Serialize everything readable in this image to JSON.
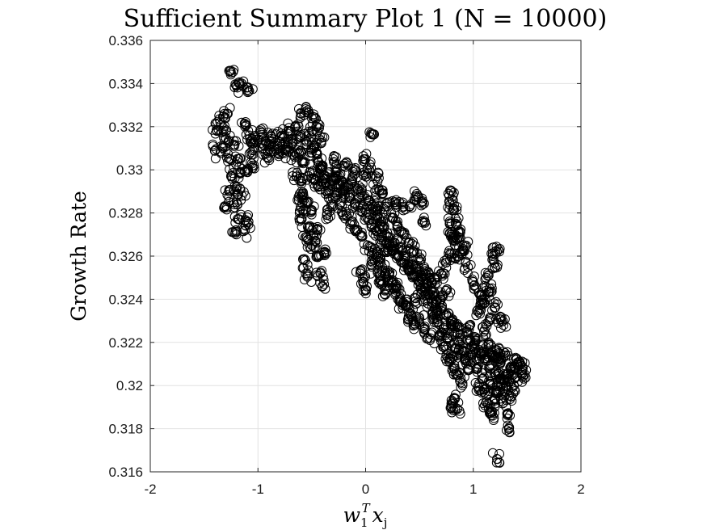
{
  "chart_data": {
    "type": "scatter",
    "title": "Sufficient Summary Plot 1 (N = 10000)",
    "xlabel": "w_1^T x_j",
    "ylabel": "Growth Rate",
    "xlim": [
      -2,
      2
    ],
    "ylim": [
      0.316,
      0.336
    ],
    "x_ticks": [
      "-2",
      "-1",
      "0",
      "1",
      "2"
    ],
    "y_ticks": [
      "0.316",
      "0.318",
      "0.32",
      "0.322",
      "0.324",
      "0.326",
      "0.328",
      "0.33",
      "0.332",
      "0.334",
      "0.336"
    ],
    "grid": true,
    "marker": "open-circle",
    "marker_color": "#000000",
    "n_points": 10000,
    "series": [
      {
        "points": [
          [
            -1.25,
            0.3345
          ],
          [
            -1.2,
            0.3339
          ],
          [
            -1.15,
            0.334
          ],
          [
            -1.1,
            0.3337
          ],
          [
            -1.3,
            0.3315
          ],
          [
            -1.35,
            0.3322
          ],
          [
            -1.4,
            0.3309
          ],
          [
            -1.32,
            0.3318
          ],
          [
            -1.28,
            0.3326
          ],
          [
            -1.22,
            0.3311
          ],
          [
            -1.18,
            0.3305
          ],
          [
            -1.12,
            0.332
          ],
          [
            -1.08,
            0.3316
          ],
          [
            -1.05,
            0.3312
          ],
          [
            -1.0,
            0.3314
          ],
          [
            -0.95,
            0.331
          ],
          [
            -0.9,
            0.3312
          ],
          [
            -0.85,
            0.3311
          ],
          [
            -0.8,
            0.3313
          ],
          [
            -0.75,
            0.3309
          ],
          [
            -1.25,
            0.3297
          ],
          [
            -1.2,
            0.3291
          ],
          [
            -1.15,
            0.3288
          ],
          [
            -1.1,
            0.3299
          ],
          [
            -1.05,
            0.3302
          ],
          [
            -1.22,
            0.3284
          ],
          [
            -1.18,
            0.3277
          ],
          [
            -1.2,
            0.327
          ],
          [
            -1.12,
            0.3272
          ],
          [
            -1.1,
            0.3278
          ],
          [
            -1.3,
            0.3283
          ],
          [
            -1.27,
            0.329
          ],
          [
            -0.6,
            0.3326
          ],
          [
            -0.55,
            0.3327
          ],
          [
            -0.5,
            0.3324
          ],
          [
            -0.45,
            0.332
          ],
          [
            -0.65,
            0.332
          ],
          [
            -0.6,
            0.3315
          ],
          [
            -0.55,
            0.3312
          ],
          [
            -0.5,
            0.3308
          ],
          [
            -0.45,
            0.3305
          ],
          [
            -0.4,
            0.3302
          ],
          [
            -0.35,
            0.3298
          ],
          [
            -0.3,
            0.3296
          ],
          [
            -0.25,
            0.3293
          ],
          [
            -0.2,
            0.329
          ],
          [
            -0.15,
            0.3287
          ],
          [
            -0.1,
            0.3284
          ],
          [
            -0.05,
            0.3281
          ],
          [
            0.0,
            0.3278
          ],
          [
            0.05,
            0.3275
          ],
          [
            0.1,
            0.3272
          ],
          [
            0.15,
            0.3269
          ],
          [
            0.2,
            0.3266
          ],
          [
            0.25,
            0.3263
          ],
          [
            0.3,
            0.326
          ],
          [
            0.35,
            0.3257
          ],
          [
            0.4,
            0.3254
          ],
          [
            0.45,
            0.3251
          ],
          [
            0.5,
            0.3248
          ],
          [
            0.55,
            0.3245
          ],
          [
            0.6,
            0.3242
          ],
          [
            0.65,
            0.3239
          ],
          [
            0.7,
            0.3236
          ],
          [
            0.75,
            0.3233
          ],
          [
            0.8,
            0.323
          ],
          [
            0.85,
            0.3227
          ],
          [
            0.9,
            0.3224
          ],
          [
            0.95,
            0.3221
          ],
          [
            1.0,
            0.3218
          ],
          [
            1.05,
            0.3215
          ],
          [
            1.1,
            0.3212
          ],
          [
            1.15,
            0.3209
          ],
          [
            1.2,
            0.3206
          ],
          [
            1.25,
            0.3203
          ],
          [
            1.3,
            0.32
          ],
          [
            1.35,
            0.3208
          ],
          [
            1.4,
            0.3212
          ],
          [
            1.45,
            0.3205
          ],
          [
            1.42,
            0.3211
          ],
          [
            -0.4,
            0.3315
          ],
          [
            -0.3,
            0.3305
          ],
          [
            -0.2,
            0.3302
          ],
          [
            -0.1,
            0.33
          ],
          [
            0.0,
            0.3298
          ],
          [
            0.05,
            0.3301
          ],
          [
            0.1,
            0.3297
          ],
          [
            0.15,
            0.3289
          ],
          [
            0.2,
            0.3283
          ],
          [
            0.25,
            0.3278
          ],
          [
            0.3,
            0.3274
          ],
          [
            0.35,
            0.327
          ],
          [
            0.4,
            0.3266
          ],
          [
            0.45,
            0.3262
          ],
          [
            0.5,
            0.3258
          ],
          [
            0.55,
            0.3254
          ],
          [
            0.6,
            0.325
          ],
          [
            0.65,
            0.3249
          ],
          [
            0.7,
            0.3252
          ],
          [
            0.75,
            0.3257
          ],
          [
            0.8,
            0.3261
          ],
          [
            0.85,
            0.3268
          ],
          [
            0.9,
            0.3262
          ],
          [
            0.95,
            0.3255
          ],
          [
            1.0,
            0.3248
          ],
          [
            1.05,
            0.3243
          ],
          [
            1.1,
            0.3238
          ],
          [
            1.15,
            0.3245
          ],
          [
            1.2,
            0.3255
          ],
          [
            1.22,
            0.3262
          ],
          [
            1.18,
            0.326
          ],
          [
            1.12,
            0.325
          ],
          [
            -0.6,
            0.3295
          ],
          [
            -0.55,
            0.3285
          ],
          [
            -0.6,
            0.3277
          ],
          [
            -0.55,
            0.3269
          ],
          [
            -0.5,
            0.3265
          ],
          [
            -0.45,
            0.326
          ],
          [
            -0.42,
            0.3252
          ],
          [
            -0.4,
            0.3246
          ],
          [
            -0.45,
            0.3272
          ],
          [
            -0.5,
            0.3281
          ],
          [
            -0.58,
            0.3289
          ],
          [
            -0.62,
            0.3286
          ],
          [
            -0.52,
            0.3274
          ],
          [
            -0.48,
            0.3269
          ],
          [
            -0.38,
            0.3262
          ],
          [
            -0.35,
            0.3289
          ],
          [
            0.05,
            0.3317
          ],
          [
            0.0,
            0.3305
          ],
          [
            0.1,
            0.3291
          ],
          [
            0.12,
            0.3283
          ],
          [
            0.15,
            0.3276
          ],
          [
            -0.05,
            0.3252
          ],
          [
            -0.02,
            0.3248
          ],
          [
            0.0,
            0.3244
          ],
          [
            0.05,
            0.3256
          ],
          [
            0.1,
            0.3262
          ],
          [
            0.13,
            0.3252
          ],
          [
            0.15,
            0.3247
          ],
          [
            0.18,
            0.3244
          ],
          [
            0.22,
            0.3251
          ],
          [
            0.28,
            0.3285
          ],
          [
            0.35,
            0.3283
          ],
          [
            0.42,
            0.3284
          ],
          [
            0.48,
            0.3288
          ],
          [
            0.52,
            0.3285
          ],
          [
            0.55,
            0.3276
          ],
          [
            0.3,
            0.3245
          ],
          [
            0.35,
            0.3238
          ],
          [
            0.4,
            0.3232
          ],
          [
            0.45,
            0.3228
          ],
          [
            0.5,
            0.3231
          ],
          [
            0.55,
            0.3226
          ],
          [
            0.6,
            0.3222
          ],
          [
            0.65,
            0.3234
          ],
          [
            0.7,
            0.324
          ],
          [
            0.75,
            0.3244
          ],
          [
            0.8,
            0.3228
          ],
          [
            0.85,
            0.3221
          ],
          [
            0.9,
            0.3216
          ],
          [
            0.93,
            0.3212
          ],
          [
            0.95,
            0.3208
          ],
          [
            0.78,
            0.3285
          ],
          [
            0.8,
            0.329
          ],
          [
            0.82,
            0.3282
          ],
          [
            0.85,
            0.3276
          ],
          [
            0.88,
            0.3271
          ],
          [
            0.92,
            0.3265
          ],
          [
            0.78,
            0.3275
          ],
          [
            0.8,
            0.327
          ],
          [
            0.83,
            0.3267
          ],
          [
            0.86,
            0.326
          ],
          [
            0.8,
            0.319
          ],
          [
            0.82,
            0.3194
          ],
          [
            0.85,
            0.3189
          ],
          [
            1.05,
            0.3199
          ],
          [
            1.08,
            0.3203
          ],
          [
            1.1,
            0.3198
          ],
          [
            1.12,
            0.3192
          ],
          [
            1.15,
            0.3188
          ],
          [
            1.18,
            0.3186
          ],
          [
            1.2,
            0.3193
          ],
          [
            1.25,
            0.3198
          ],
          [
            1.28,
            0.3192
          ],
          [
            1.32,
            0.3187
          ],
          [
            1.35,
            0.3195
          ],
          [
            1.3,
            0.3205
          ],
          [
            1.25,
            0.321
          ],
          [
            1.22,
            0.3213
          ],
          [
            1.33,
            0.318
          ],
          [
            1.22,
            0.3166
          ],
          [
            1.1,
            0.3225
          ],
          [
            1.15,
            0.323
          ],
          [
            1.2,
            0.3236
          ],
          [
            1.25,
            0.3232
          ],
          [
            1.28,
            0.3228
          ],
          [
            1.05,
            0.3234
          ],
          [
            1.08,
            0.324
          ],
          [
            1.12,
            0.3244
          ],
          [
            0.68,
            0.3223
          ],
          [
            0.72,
            0.3218
          ],
          [
            0.75,
            0.3214
          ],
          [
            0.78,
            0.3212
          ],
          [
            0.82,
            0.3208
          ],
          [
            0.86,
            0.3205
          ],
          [
            0.9,
            0.3201
          ],
          [
            0.2,
            0.3262
          ],
          [
            -1.38,
            0.3318
          ],
          [
            -1.34,
            0.3311
          ],
          [
            -1.26,
            0.3305
          ],
          [
            -1.16,
            0.3299
          ],
          [
            -1.06,
            0.3307
          ],
          [
            -0.98,
            0.3318
          ],
          [
            -0.92,
            0.3306
          ],
          [
            -0.88,
            0.3316
          ],
          [
            -0.7,
            0.3318
          ],
          [
            -0.68,
            0.3312
          ],
          [
            -0.62,
            0.3308
          ],
          [
            -0.58,
            0.3303
          ],
          [
            -0.52,
            0.3299
          ],
          [
            -0.48,
            0.3296
          ],
          [
            -0.44,
            0.3292
          ],
          [
            -0.36,
            0.3279
          ],
          [
            -0.32,
            0.3284
          ],
          [
            -0.28,
            0.3288
          ],
          [
            -0.22,
            0.3283
          ],
          [
            -0.18,
            0.3279
          ],
          [
            -0.12,
            0.3276
          ],
          [
            -0.08,
            0.3272
          ],
          [
            -0.04,
            0.3269
          ],
          [
            0.02,
            0.3265
          ],
          [
            0.08,
            0.3261
          ],
          [
            0.14,
            0.3257
          ],
          [
            0.18,
            0.3253
          ],
          [
            0.24,
            0.3249
          ],
          [
            0.28,
            0.3245
          ],
          [
            0.32,
            0.3241
          ],
          [
            0.38,
            0.3237
          ],
          [
            0.42,
            0.3233
          ],
          [
            0.46,
            0.3239
          ],
          [
            0.52,
            0.3243
          ],
          [
            0.58,
            0.3238
          ],
          [
            0.62,
            0.3233
          ],
          [
            0.66,
            0.3229
          ],
          [
            0.72,
            0.3226
          ],
          [
            0.76,
            0.3222
          ],
          [
            0.84,
            0.3217
          ],
          [
            0.96,
            0.3226
          ],
          [
            1.02,
            0.3221
          ],
          [
            1.08,
            0.3216
          ],
          [
            1.14,
            0.3219
          ],
          [
            1.18,
            0.3214
          ],
          [
            1.24,
            0.3217
          ],
          [
            1.3,
            0.3214
          ],
          [
            1.38,
            0.3209
          ],
          [
            -0.5,
            0.3318
          ],
          [
            -0.47,
            0.3311
          ],
          [
            -0.42,
            0.3301
          ],
          [
            -0.38,
            0.3296
          ],
          [
            -0.33,
            0.3293
          ],
          [
            -0.27,
            0.3299
          ],
          [
            -0.23,
            0.3295
          ],
          [
            -0.17,
            0.3292
          ],
          [
            -0.13,
            0.3295
          ],
          [
            -0.07,
            0.3291
          ],
          [
            -0.03,
            0.3288
          ],
          [
            0.03,
            0.3286
          ],
          [
            0.07,
            0.3283
          ],
          [
            0.11,
            0.3279
          ],
          [
            0.17,
            0.3273
          ],
          [
            0.21,
            0.3269
          ],
          [
            0.27,
            0.3266
          ],
          [
            0.31,
            0.3263
          ],
          [
            0.37,
            0.3259
          ],
          [
            0.41,
            0.3256
          ],
          [
            0.47,
            0.3253
          ],
          [
            0.51,
            0.325
          ],
          [
            0.57,
            0.3247
          ],
          [
            0.61,
            0.3244
          ],
          [
            -0.82,
            0.3308
          ],
          [
            -0.78,
            0.3316
          ],
          [
            -0.72,
            0.3311
          ],
          [
            -0.66,
            0.3306
          ],
          [
            -0.64,
            0.3297
          ],
          [
            -0.58,
            0.3281
          ],
          [
            -0.56,
            0.3258
          ],
          [
            -0.54,
            0.3251
          ],
          [
            0.98,
            0.3213
          ],
          [
            1.04,
            0.3208
          ],
          [
            1.16,
            0.3201
          ],
          [
            1.21,
            0.3197
          ],
          [
            1.27,
            0.3203
          ],
          [
            1.36,
            0.3199
          ],
          [
            1.4,
            0.3204
          ],
          [
            1.46,
            0.3208
          ]
        ]
      }
    ]
  }
}
